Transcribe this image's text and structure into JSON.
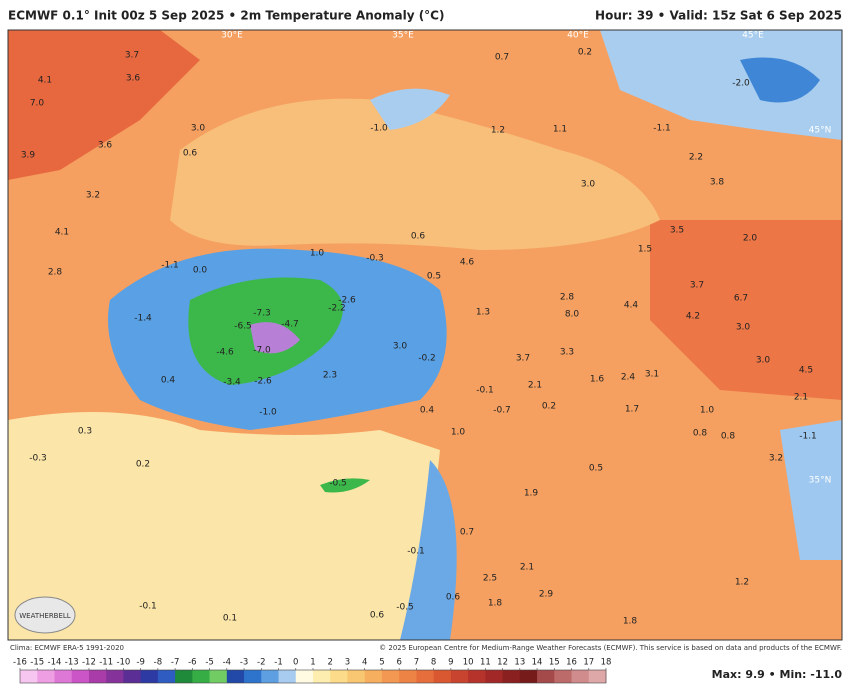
{
  "header": {
    "left": "ECMWF 0.1° Init 00z 5 Sep 2025 • 2m Temperature Anomaly (°C)",
    "right": "Hour: 39 • Valid: 15z Sat 6 Sep 2025"
  },
  "map": {
    "geo_labels": [
      "30°E",
      "35°E",
      "40°E",
      "45°E",
      "45°N",
      "35°N"
    ],
    "anomaly_labels": [
      "4.1",
      "3.7",
      "3.6",
      "7.0",
      "3.9",
      "3.0",
      "3.6",
      "0.6",
      "3.2",
      "4.1",
      "2.8",
      "-1.1",
      "0.0",
      "1.0",
      "-0.3",
      "0.6",
      "4.6",
      "0.5",
      "-1.4",
      "-7.3",
      "-6.5",
      "-4.7",
      "-2.6",
      "-2.2",
      "-4.6",
      "-7.0",
      "3.0",
      "-0.2",
      "1.3",
      "3.7",
      "3.3",
      "2.3",
      "-2.6",
      "-3.4",
      "0.4",
      "-1.0",
      "0.4",
      "-0.7",
      "0.2",
      "1.6",
      "2.4",
      "3.1",
      "1.7",
      "4.4",
      "8.0",
      "4.2",
      "6.7",
      "3.7",
      "3.0",
      "3.0",
      "4.5",
      "2.1",
      "1.0",
      "0.8",
      "0.8",
      "-1.1",
      "3.2",
      "0.5",
      "1.9",
      "2.1",
      "2.5",
      "2.9",
      "1.8",
      "1.8",
      "1.2",
      "-1.1",
      "-2.0",
      "2.2",
      "3.8",
      "3.0",
      "1.2",
      "-1.0",
      "1.1",
      "0.7",
      "0.2",
      "3.5",
      "2.0",
      "1.5",
      "2.8",
      "-0.5",
      "-0.5",
      "0.6",
      "0.6",
      "-0.1",
      "1.0",
      "0.7",
      "0.3",
      "0.2",
      "-0.3",
      "-0.1",
      "0.1",
      "2.1",
      "-0.1"
    ],
    "logo": "WEATHERBELL"
  },
  "footer": {
    "clima": "Clima: ECMWF ERA-5 1991-2020",
    "copyright": "© 2025 European Centre for Medium-Range Weather Forecasts (ECMWF). This service is based on data and products of the ECMWF.",
    "maxmin": "Max: 9.9 • Min: -11.0"
  },
  "colorbar": {
    "ticks": [
      -16,
      -15,
      -14,
      -13,
      -12,
      -11,
      -10,
      -9,
      -8,
      -7,
      -6,
      -5,
      -4,
      -3,
      -2,
      -1,
      0,
      1,
      2,
      3,
      4,
      5,
      6,
      7,
      8,
      9,
      10,
      11,
      12,
      13,
      14,
      15,
      16,
      17,
      18
    ],
    "colors": [
      "#f7c6f0",
      "#ee9fe4",
      "#de78d6",
      "#cb55c6",
      "#a93ca8",
      "#85339a",
      "#5a2e94",
      "#2e3aa3",
      "#2f5cc0",
      "#1e8a3a",
      "#36ad45",
      "#72cc64",
      "#2349a8",
      "#2f74cc",
      "#5e9fe2",
      "#a8ccf0",
      "#fffbe3",
      "#fdeeb0",
      "#fcdc8a",
      "#f9c672",
      "#f6ae5f",
      "#f39852",
      "#ee8346",
      "#e66e3c",
      "#d95832",
      "#c9442e",
      "#b5332a",
      "#a12826",
      "#8b2020",
      "#761a1a",
      "#a44a4a",
      "#bd6a6a",
      "#d08c8c",
      "#dfa8a8"
    ]
  }
}
